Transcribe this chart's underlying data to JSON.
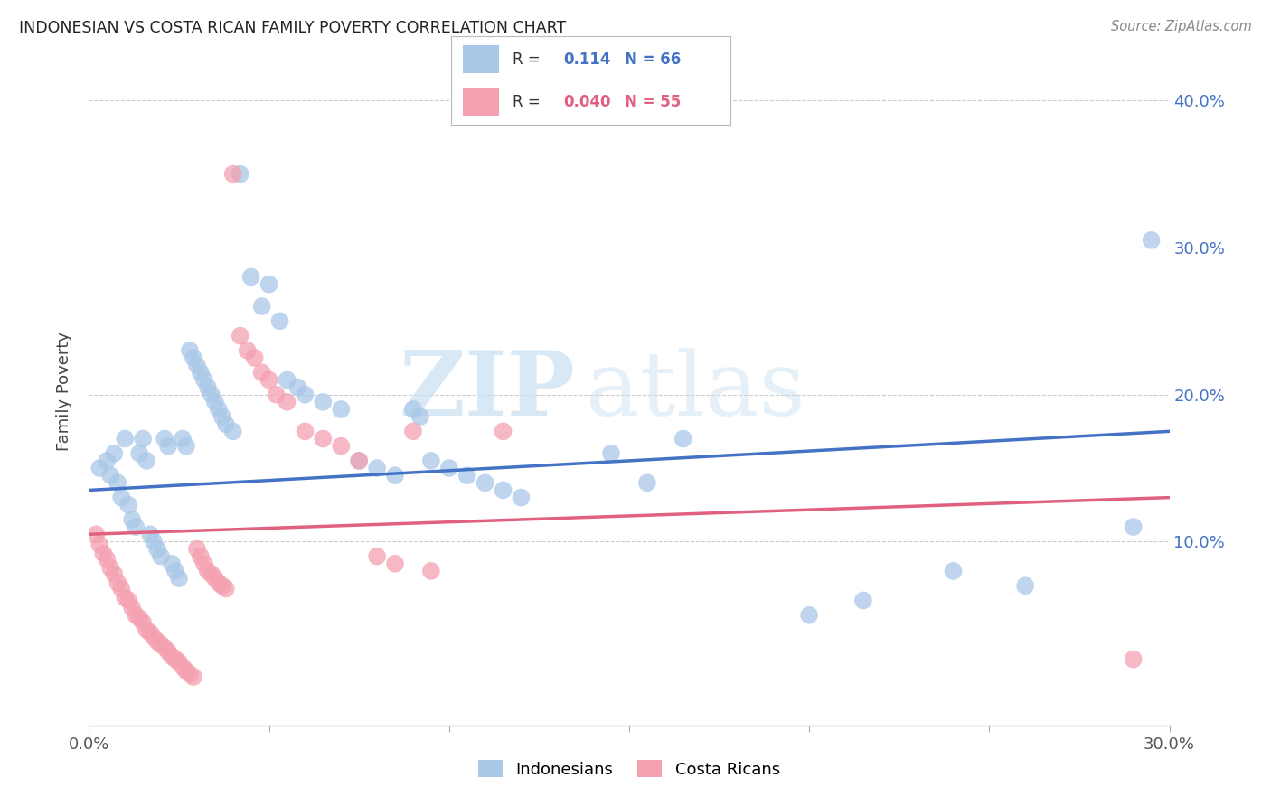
{
  "title": "INDONESIAN VS COSTA RICAN FAMILY POVERTY CORRELATION CHART",
  "source": "Source: ZipAtlas.com",
  "ylabel_label": "Family Poverty",
  "xlim": [
    0.0,
    0.3
  ],
  "ylim": [
    -0.025,
    0.43
  ],
  "indonesian_color": "#a8c8e8",
  "costa_rican_color": "#f4a0b0",
  "trend_indonesian_color": "#4472c4",
  "trend_costa_rican_color": "#e06080",
  "R_indonesian": "0.114",
  "N_indonesian": "66",
  "R_costa_rican": "0.040",
  "N_costa_rican": "55",
  "watermark_zip": "ZIP",
  "watermark_atlas": "atlas",
  "indonesian_points": [
    [
      0.003,
      0.15
    ],
    [
      0.005,
      0.155
    ],
    [
      0.006,
      0.145
    ],
    [
      0.007,
      0.16
    ],
    [
      0.008,
      0.14
    ],
    [
      0.009,
      0.13
    ],
    [
      0.01,
      0.17
    ],
    [
      0.011,
      0.125
    ],
    [
      0.012,
      0.115
    ],
    [
      0.013,
      0.11
    ],
    [
      0.014,
      0.16
    ],
    [
      0.015,
      0.17
    ],
    [
      0.016,
      0.155
    ],
    [
      0.017,
      0.105
    ],
    [
      0.018,
      0.1
    ],
    [
      0.019,
      0.095
    ],
    [
      0.02,
      0.09
    ],
    [
      0.021,
      0.17
    ],
    [
      0.022,
      0.165
    ],
    [
      0.023,
      0.085
    ],
    [
      0.024,
      0.08
    ],
    [
      0.025,
      0.075
    ],
    [
      0.026,
      0.17
    ],
    [
      0.027,
      0.165
    ],
    [
      0.028,
      0.23
    ],
    [
      0.029,
      0.225
    ],
    [
      0.03,
      0.22
    ],
    [
      0.031,
      0.215
    ],
    [
      0.032,
      0.21
    ],
    [
      0.033,
      0.205
    ],
    [
      0.034,
      0.2
    ],
    [
      0.035,
      0.195
    ],
    [
      0.036,
      0.19
    ],
    [
      0.037,
      0.185
    ],
    [
      0.038,
      0.18
    ],
    [
      0.04,
      0.175
    ],
    [
      0.042,
      0.35
    ],
    [
      0.045,
      0.28
    ],
    [
      0.048,
      0.26
    ],
    [
      0.05,
      0.275
    ],
    [
      0.053,
      0.25
    ],
    [
      0.055,
      0.21
    ],
    [
      0.058,
      0.205
    ],
    [
      0.06,
      0.2
    ],
    [
      0.065,
      0.195
    ],
    [
      0.07,
      0.19
    ],
    [
      0.075,
      0.155
    ],
    [
      0.08,
      0.15
    ],
    [
      0.085,
      0.145
    ],
    [
      0.09,
      0.19
    ],
    [
      0.092,
      0.185
    ],
    [
      0.095,
      0.155
    ],
    [
      0.1,
      0.15
    ],
    [
      0.105,
      0.145
    ],
    [
      0.11,
      0.14
    ],
    [
      0.115,
      0.135
    ],
    [
      0.12,
      0.13
    ],
    [
      0.145,
      0.16
    ],
    [
      0.155,
      0.14
    ],
    [
      0.165,
      0.17
    ],
    [
      0.2,
      0.05
    ],
    [
      0.215,
      0.06
    ],
    [
      0.24,
      0.08
    ],
    [
      0.26,
      0.07
    ],
    [
      0.29,
      0.11
    ],
    [
      0.295,
      0.305
    ]
  ],
  "costa_rican_points": [
    [
      0.002,
      0.105
    ],
    [
      0.003,
      0.098
    ],
    [
      0.004,
      0.092
    ],
    [
      0.005,
      0.088
    ],
    [
      0.006,
      0.082
    ],
    [
      0.007,
      0.078
    ],
    [
      0.008,
      0.072
    ],
    [
      0.009,
      0.068
    ],
    [
      0.01,
      0.062
    ],
    [
      0.011,
      0.06
    ],
    [
      0.012,
      0.055
    ],
    [
      0.013,
      0.05
    ],
    [
      0.014,
      0.048
    ],
    [
      0.015,
      0.045
    ],
    [
      0.016,
      0.04
    ],
    [
      0.017,
      0.038
    ],
    [
      0.018,
      0.035
    ],
    [
      0.019,
      0.032
    ],
    [
      0.02,
      0.03
    ],
    [
      0.021,
      0.028
    ],
    [
      0.022,
      0.025
    ],
    [
      0.023,
      0.022
    ],
    [
      0.024,
      0.02
    ],
    [
      0.025,
      0.018
    ],
    [
      0.026,
      0.015
    ],
    [
      0.027,
      0.012
    ],
    [
      0.028,
      0.01
    ],
    [
      0.029,
      0.008
    ],
    [
      0.03,
      0.095
    ],
    [
      0.031,
      0.09
    ],
    [
      0.032,
      0.085
    ],
    [
      0.033,
      0.08
    ],
    [
      0.034,
      0.078
    ],
    [
      0.035,
      0.075
    ],
    [
      0.036,
      0.072
    ],
    [
      0.037,
      0.07
    ],
    [
      0.038,
      0.068
    ],
    [
      0.04,
      0.35
    ],
    [
      0.042,
      0.24
    ],
    [
      0.044,
      0.23
    ],
    [
      0.046,
      0.225
    ],
    [
      0.048,
      0.215
    ],
    [
      0.05,
      0.21
    ],
    [
      0.052,
      0.2
    ],
    [
      0.055,
      0.195
    ],
    [
      0.06,
      0.175
    ],
    [
      0.065,
      0.17
    ],
    [
      0.07,
      0.165
    ],
    [
      0.075,
      0.155
    ],
    [
      0.08,
      0.09
    ],
    [
      0.085,
      0.085
    ],
    [
      0.09,
      0.175
    ],
    [
      0.095,
      0.08
    ],
    [
      0.115,
      0.175
    ],
    [
      0.29,
      0.02
    ]
  ]
}
